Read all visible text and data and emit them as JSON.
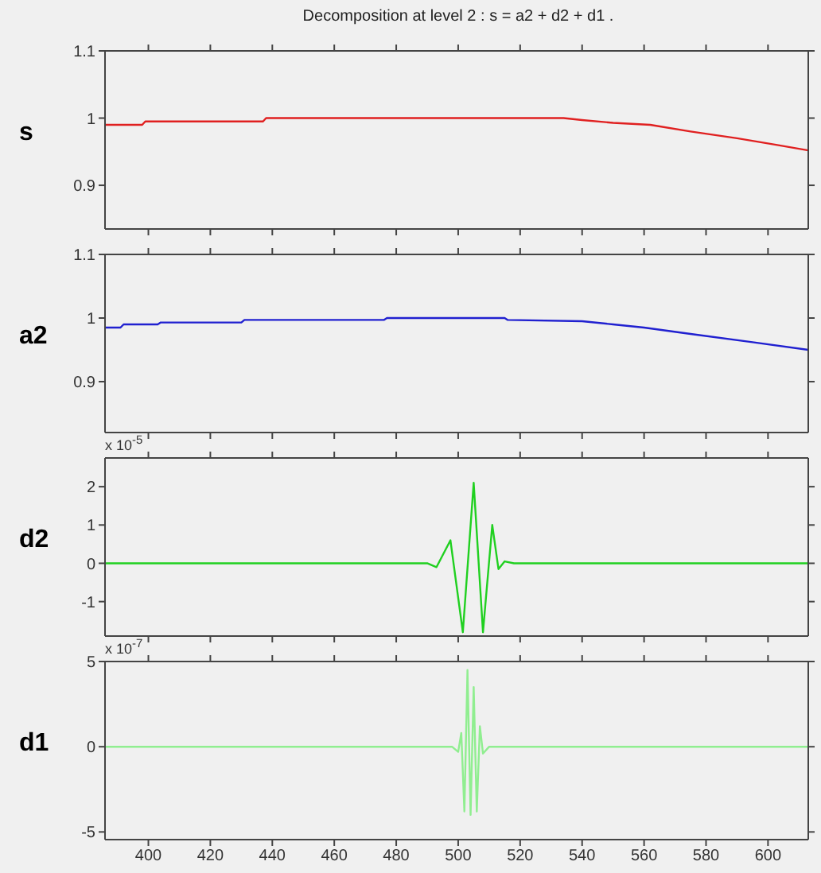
{
  "chart_data": [
    {
      "type": "line",
      "title": "Decomposition at level 2 : s = a2 + d2 + d1 .",
      "ylabel": "s",
      "xlim": [
        386,
        613
      ],
      "xticks": [
        400,
        420,
        440,
        460,
        480,
        500,
        520,
        540,
        560,
        580,
        600
      ],
      "ylim": [
        0.835,
        1.1
      ],
      "yticks": [
        0.9,
        1,
        1.1
      ],
      "tick_labels": "y",
      "series": [
        {
          "color": "#e02020",
          "x": [
            386,
            398,
            399,
            437,
            438,
            534,
            540,
            550,
            562,
            575,
            590,
            603,
            613
          ],
          "values": [
            0.99,
            0.99,
            0.995,
            0.995,
            1.0,
            1.0,
            0.997,
            0.993,
            0.99,
            0.98,
            0.97,
            0.96,
            0.952
          ]
        }
      ]
    },
    {
      "type": "line",
      "ylabel": "a2",
      "xlim": [
        386,
        613
      ],
      "xticks": [
        400,
        420,
        440,
        460,
        480,
        500,
        520,
        540,
        560,
        580,
        600
      ],
      "ylim": [
        0.82,
        1.1
      ],
      "yticks": [
        0.9,
        1,
        1.1
      ],
      "tick_labels": "y",
      "series": [
        {
          "color": "#2020d0",
          "x": [
            386,
            391,
            392,
            403,
            404,
            430,
            431,
            476,
            477,
            515,
            516,
            540,
            550,
            560,
            575,
            595,
            613
          ],
          "values": [
            0.985,
            0.985,
            0.99,
            0.99,
            0.993,
            0.993,
            0.997,
            0.997,
            1.0,
            1.0,
            0.997,
            0.995,
            0.99,
            0.985,
            0.975,
            0.962,
            0.95
          ]
        }
      ]
    },
    {
      "type": "line",
      "ylabel": "d2",
      "annotations": [
        "x 10$^{-5}$"
      ],
      "xlim": [
        386,
        613
      ],
      "xticks": [
        400,
        420,
        440,
        460,
        480,
        500,
        520,
        540,
        560,
        580,
        600
      ],
      "ylim": [
        -1.9,
        2.75
      ],
      "yticks": [
        -1,
        0,
        1,
        2
      ],
      "tick_labels": "y",
      "series": [
        {
          "color": "#20d020",
          "x": [
            386,
            490,
            493,
            497.5,
            501.5,
            505,
            508,
            511,
            513,
            515,
            518,
            613
          ],
          "values": [
            0,
            0,
            -0.1,
            0.6,
            -1.8,
            2.1,
            -1.8,
            1.0,
            -0.15,
            0.05,
            0,
            0
          ]
        }
      ]
    },
    {
      "type": "line",
      "ylabel": "d1",
      "annotations": [
        "x 10$^{-7}$"
      ],
      "xlim": [
        386,
        613
      ],
      "xticks": [
        400,
        420,
        440,
        460,
        480,
        500,
        520,
        540,
        560,
        580,
        600
      ],
      "ylim": [
        -5.45,
        5
      ],
      "yticks": [
        -5,
        0,
        5
      ],
      "series": [
        {
          "color": "#90ee90",
          "x": [
            386,
            498,
            500,
            501,
            502,
            503,
            504,
            505,
            506,
            507,
            508,
            510,
            613
          ],
          "values": [
            0,
            0,
            -0.3,
            0.8,
            -3.8,
            4.5,
            -4,
            3.5,
            -3.8,
            1.2,
            -0.4,
            0,
            0
          ]
        }
      ]
    }
  ]
}
